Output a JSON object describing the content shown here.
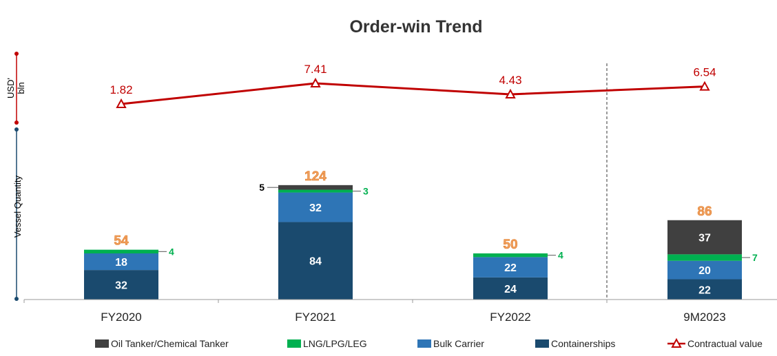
{
  "chart_data": {
    "type": "bar",
    "stacked": true,
    "title": "Order-win Trend",
    "categories": [
      "FY2020",
      "FY2021",
      "FY2022",
      "9M2023"
    ],
    "series": [
      {
        "name": "Containerships",
        "color": "#1a4a6e",
        "values": [
          32,
          84,
          24,
          22
        ]
      },
      {
        "name": "Bulk Carrier",
        "color": "#2e75b6",
        "values": [
          18,
          32,
          22,
          20
        ]
      },
      {
        "name": "LNG/LPG/LEG",
        "color": "#00b050",
        "values": [
          4,
          3,
          4,
          7
        ]
      },
      {
        "name": "Oil Tanker/Chemical Tanker",
        "color": "#404040",
        "values": [
          0,
          5,
          0,
          37
        ]
      }
    ],
    "totals": [
      "54",
      "124",
      "50",
      "86"
    ],
    "line_series": {
      "name": "Contractual value",
      "color": "#c00000",
      "values": [
        1.82,
        7.41,
        4.43,
        6.54
      ],
      "labels": [
        "1.82",
        "7.41",
        "4.43",
        "6.54"
      ]
    },
    "ylabel_bars": "Vessel Quantity",
    "ylabel_line_1": "USD'",
    "ylabel_line_2": "bln",
    "legend_order": [
      "Oil Tanker/Chemical Tanker",
      "LNG/LPG/LEG",
      "Bulk Carrier",
      "Containerships",
      "Contractual value"
    ],
    "legend_position": "bottom",
    "grid": false
  }
}
